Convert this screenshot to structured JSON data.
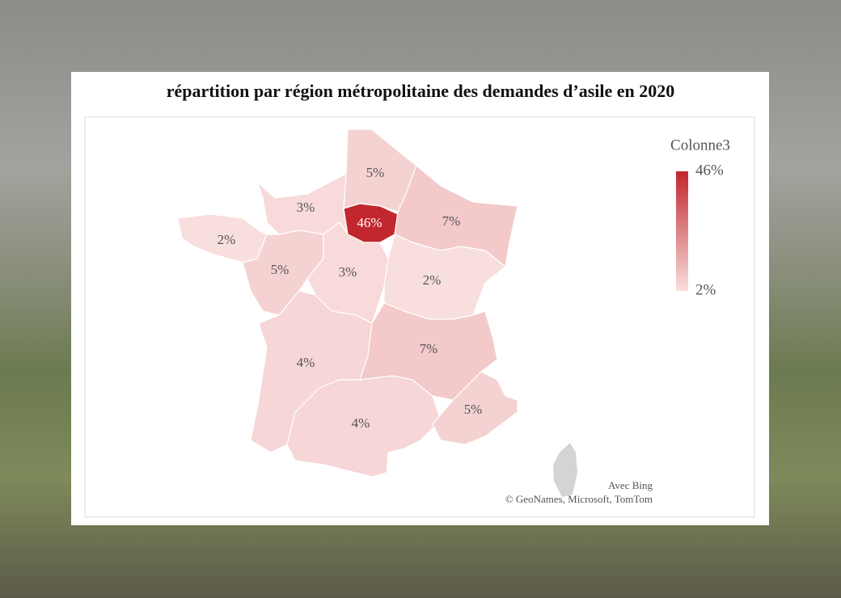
{
  "chart_data": {
    "type": "choropleth",
    "title": "répartition par région métropolitaine des demandes d’asile en 2020",
    "values": [
      5,
      3,
      46,
      7,
      2,
      5,
      3,
      2,
      4,
      7,
      4,
      5
    ],
    "value_labels": [
      "5%",
      "3%",
      "46%",
      "7%",
      "2%",
      "5%",
      "3%",
      "2%",
      "4%",
      "7%",
      "4%",
      "5%"
    ],
    "clim": [
      2,
      46
    ],
    "color_min": "#f9dede",
    "color_max": "#c1272d",
    "legend": {
      "title": "Colonne3",
      "ticks": [
        {
          "value": 46,
          "label": "46%"
        },
        {
          "value": 2,
          "label": "2%"
        }
      ]
    },
    "attribution": [
      "Avec Bing",
      "© GeoNames, Microsoft, TomTom"
    ]
  }
}
